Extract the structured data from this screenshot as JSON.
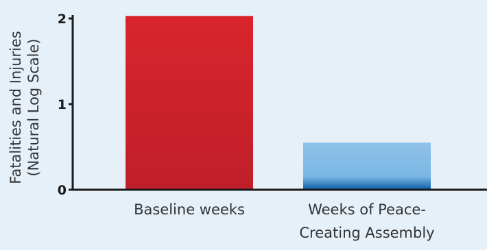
{
  "chart_data": {
    "type": "bar",
    "categories": [
      "Baseline weeks",
      "Weeks of Peace-Creating Assembly"
    ],
    "category_lines": [
      [
        "Baseline weeks"
      ],
      [
        "Weeks of Peace-",
        "Creating Assembly"
      ]
    ],
    "values": [
      2.03,
      0.55
    ],
    "ylabel_lines": [
      "Fatalities and Injuries",
      "(Natural Log Scale)"
    ],
    "ylim": [
      0,
      2
    ],
    "yticks": [
      "0",
      "1",
      "2"
    ],
    "xlabel": "",
    "title": "",
    "bar_colors": [
      {
        "top": "#d9252d",
        "bottom": "#bf1f29"
      },
      {
        "top": "#8fc2e8",
        "mid": "#7ab6e4",
        "bottom": "#0a5ea6"
      }
    ],
    "grid": false
  }
}
